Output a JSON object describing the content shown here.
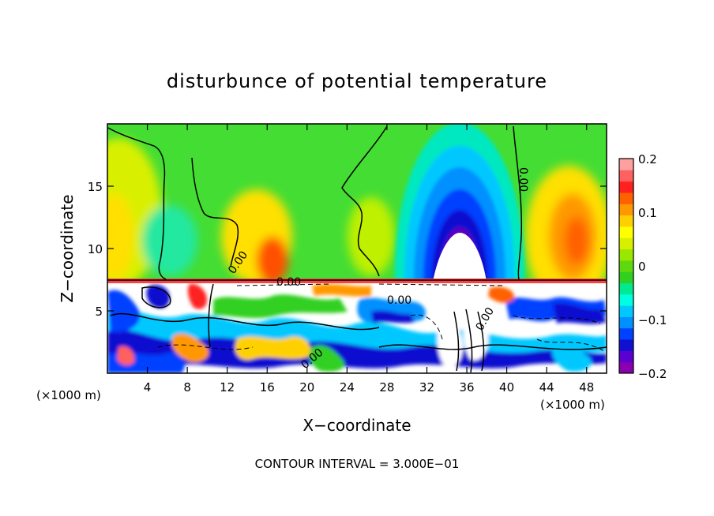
{
  "chart_data": {
    "type": "heatmap",
    "title": "disturbunce of potential temperature",
    "xlabel": "X−coordinate",
    "ylabel": "Z−coordinate",
    "x_unit": "(×1000 m)",
    "y_unit": "(×1000 m)",
    "xlim": [
      0,
      50
    ],
    "ylim": [
      0,
      20
    ],
    "x_ticks": [
      4,
      8,
      12,
      16,
      20,
      24,
      28,
      32,
      36,
      40,
      44,
      48
    ],
    "x_tick_labels": [
      "4",
      "8",
      "12",
      "16",
      "20",
      "24",
      "28",
      "32",
      "36",
      "40",
      "44",
      "48"
    ],
    "y_ticks": [
      5,
      10,
      15
    ],
    "y_tick_labels": [
      "5",
      "10",
      "15"
    ],
    "colorbar": {
      "range": [
        -0.2,
        0.2
      ],
      "tick_values": [
        0.2,
        0.1,
        0,
        -0.1,
        -0.2
      ],
      "tick_labels": [
        "0.2",
        "0.1",
        "0",
        "−0.1",
        "−0.2"
      ],
      "colors": [
        "#8a00b0",
        "#5a00d0",
        "#1010d0",
        "#0040ff",
        "#0090ff",
        "#00c8ff",
        "#00ffe0",
        "#00e890",
        "#30d020",
        "#60d810",
        "#9ae800",
        "#d8f000",
        "#ffff00",
        "#ffd000",
        "#ff9800",
        "#ff6000",
        "#ff2020",
        "#ff6060",
        "#ffa0a0"
      ]
    },
    "contour_labels": [
      "0.00",
      "0.00",
      "0.00",
      "0.00",
      "0.00",
      "0.00"
    ],
    "contour_interval_text": "CONTOUR INTERVAL = 3.000E−01",
    "features": [
      {
        "x_center": 35.5,
        "z_top": 15.5,
        "value": -0.2
      },
      {
        "x_center": 46.5,
        "z_top": 15,
        "value": 0.13
      },
      {
        "x_center": 1.5,
        "z_top": 15,
        "value": 0.07
      }
    ]
  }
}
